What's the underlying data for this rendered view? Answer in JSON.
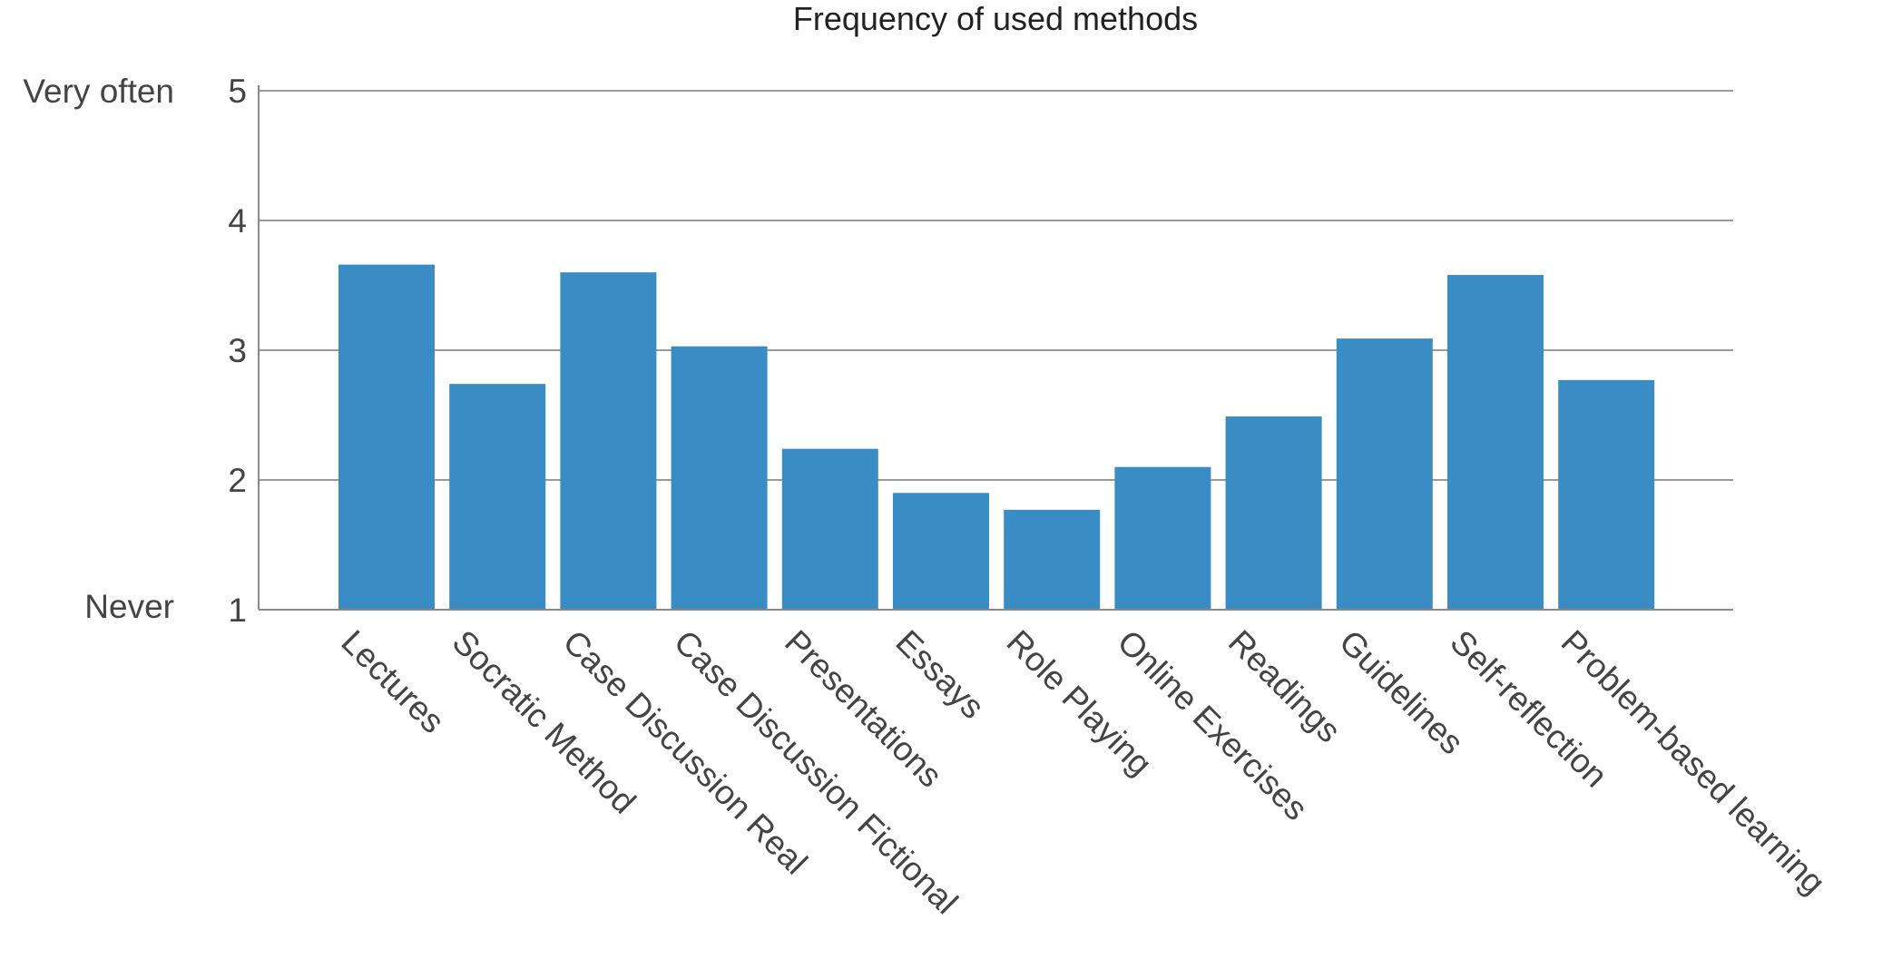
{
  "chart_data": {
    "type": "bar",
    "title": "Frequency of used methods",
    "xlabel": "",
    "ylabel": "",
    "categories": [
      "Lectures",
      "Socratic Method",
      "Case Discussion Real",
      "Case Discussion Fictional",
      "Presentations",
      "Essays",
      "Role Playing",
      "Online Exercises",
      "Readings",
      "Guidelines",
      "Self-reflection",
      "Problem-based learning"
    ],
    "values": [
      3.66,
      2.74,
      3.6,
      3.03,
      2.24,
      1.9,
      1.77,
      2.1,
      2.49,
      3.09,
      3.58,
      2.77
    ],
    "ylim": [
      1,
      5
    ],
    "yticks": [
      "1",
      "2",
      "3",
      "4",
      "5"
    ],
    "scale_labels": {
      "top": "Very often",
      "bottom": "Never"
    },
    "grid": true,
    "legend": "none",
    "bar_color": "#3a8cc4"
  }
}
